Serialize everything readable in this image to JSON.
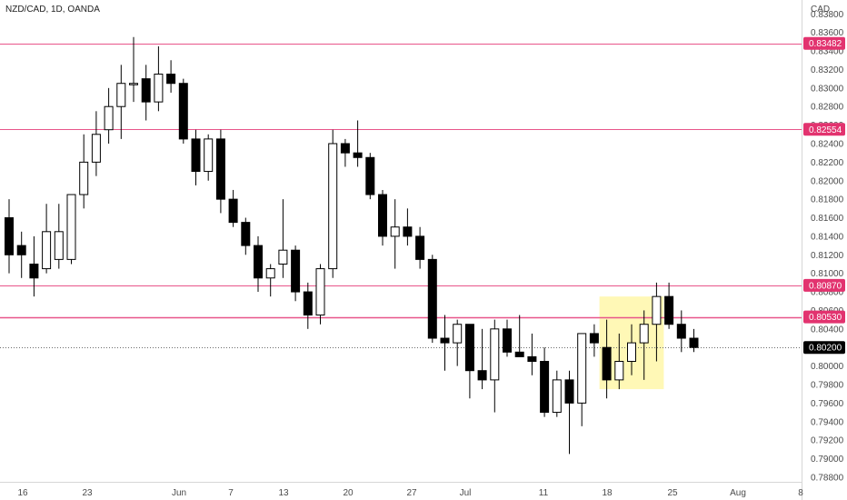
{
  "chart_data": {
    "type": "candlestick",
    "title": "NZD/CAD, 1D, OANDA",
    "currency_label": "CAD",
    "ylim": [
      0.7875,
      0.8395
    ],
    "y_ticks": [
      "0.83800",
      "0.83600",
      "0.83400",
      "0.83200",
      "0.83000",
      "0.82800",
      "0.82600",
      "0.82400",
      "0.82200",
      "0.82000",
      "0.81800",
      "0.81600",
      "0.81400",
      "0.81200",
      "0.81000",
      "0.80800",
      "0.80600",
      "0.80400",
      "0.80200",
      "0.80000",
      "0.79800",
      "0.79600",
      "0.79400",
      "0.79200",
      "0.79000",
      "0.78800"
    ],
    "x_labels": [
      "16",
      "23",
      "Jun",
      "7",
      "13",
      "20",
      "27",
      "Jul",
      "11",
      "18",
      "25",
      "Aug",
      "8"
    ],
    "horizontal_levels": [
      {
        "value": 0.83482,
        "label": "0.83482"
      },
      {
        "value": 0.82554,
        "label": "0.82554"
      },
      {
        "value": 0.8087,
        "label": "0.80870"
      },
      {
        "value": 0.8053,
        "label": "0.80530"
      }
    ],
    "last_price": {
      "value": 0.802,
      "label": "0.80200"
    },
    "highlight": {
      "from": 0.7975,
      "to": 0.8075,
      "start_candle": 48,
      "end_candle": 52
    },
    "candles": [
      {
        "o": 0.816,
        "h": 0.818,
        "l": 0.81,
        "c": 0.812
      },
      {
        "o": 0.813,
        "h": 0.8145,
        "l": 0.8095,
        "c": 0.812
      },
      {
        "o": 0.811,
        "h": 0.814,
        "l": 0.8075,
        "c": 0.8095
      },
      {
        "o": 0.8105,
        "h": 0.8175,
        "l": 0.81,
        "c": 0.8145
      },
      {
        "o": 0.8115,
        "h": 0.8175,
        "l": 0.8105,
        "c": 0.8145
      },
      {
        "o": 0.8115,
        "h": 0.8185,
        "l": 0.811,
        "c": 0.8185
      },
      {
        "o": 0.8185,
        "h": 0.825,
        "l": 0.817,
        "c": 0.822
      },
      {
        "o": 0.822,
        "h": 0.8275,
        "l": 0.8205,
        "c": 0.825
      },
      {
        "o": 0.8255,
        "h": 0.83,
        "l": 0.824,
        "c": 0.828
      },
      {
        "o": 0.828,
        "h": 0.8325,
        "l": 0.8245,
        "c": 0.8305
      },
      {
        "o": 0.8305,
        "h": 0.8355,
        "l": 0.8285,
        "c": 0.8305
      },
      {
        "o": 0.831,
        "h": 0.8325,
        "l": 0.8265,
        "c": 0.8285
      },
      {
        "o": 0.8285,
        "h": 0.8345,
        "l": 0.8275,
        "c": 0.8315
      },
      {
        "o": 0.8315,
        "h": 0.833,
        "l": 0.8295,
        "c": 0.8305
      },
      {
        "o": 0.8305,
        "h": 0.831,
        "l": 0.824,
        "c": 0.8245
      },
      {
        "o": 0.8245,
        "h": 0.8255,
        "l": 0.8195,
        "c": 0.821
      },
      {
        "o": 0.821,
        "h": 0.825,
        "l": 0.82,
        "c": 0.8245
      },
      {
        "o": 0.8245,
        "h": 0.8255,
        "l": 0.8165,
        "c": 0.818
      },
      {
        "o": 0.818,
        "h": 0.819,
        "l": 0.815,
        "c": 0.8155
      },
      {
        "o": 0.8155,
        "h": 0.816,
        "l": 0.812,
        "c": 0.813
      },
      {
        "o": 0.813,
        "h": 0.814,
        "l": 0.808,
        "c": 0.8095
      },
      {
        "o": 0.8095,
        "h": 0.811,
        "l": 0.8075,
        "c": 0.8105
      },
      {
        "o": 0.811,
        "h": 0.818,
        "l": 0.8095,
        "c": 0.8125
      },
      {
        "o": 0.8125,
        "h": 0.813,
        "l": 0.807,
        "c": 0.808
      },
      {
        "o": 0.808,
        "h": 0.809,
        "l": 0.804,
        "c": 0.8055
      },
      {
        "o": 0.8055,
        "h": 0.811,
        "l": 0.8045,
        "c": 0.8105
      },
      {
        "o": 0.8105,
        "h": 0.8255,
        "l": 0.8095,
        "c": 0.824
      },
      {
        "o": 0.824,
        "h": 0.8245,
        "l": 0.8215,
        "c": 0.823
      },
      {
        "o": 0.823,
        "h": 0.8265,
        "l": 0.8215,
        "c": 0.8225
      },
      {
        "o": 0.8225,
        "h": 0.823,
        "l": 0.818,
        "c": 0.8185
      },
      {
        "o": 0.8185,
        "h": 0.819,
        "l": 0.813,
        "c": 0.814
      },
      {
        "o": 0.814,
        "h": 0.818,
        "l": 0.8105,
        "c": 0.815
      },
      {
        "o": 0.815,
        "h": 0.817,
        "l": 0.813,
        "c": 0.814
      },
      {
        "o": 0.814,
        "h": 0.815,
        "l": 0.8105,
        "c": 0.8115
      },
      {
        "o": 0.8115,
        "h": 0.812,
        "l": 0.8025,
        "c": 0.803
      },
      {
        "o": 0.803,
        "h": 0.8055,
        "l": 0.7995,
        "c": 0.8025
      },
      {
        "o": 0.8025,
        "h": 0.805,
        "l": 0.8,
        "c": 0.8045
      },
      {
        "o": 0.8045,
        "h": 0.8045,
        "l": 0.7965,
        "c": 0.7995
      },
      {
        "o": 0.7995,
        "h": 0.804,
        "l": 0.7975,
        "c": 0.7985
      },
      {
        "o": 0.7985,
        "h": 0.805,
        "l": 0.795,
        "c": 0.804
      },
      {
        "o": 0.804,
        "h": 0.805,
        "l": 0.801,
        "c": 0.8015
      },
      {
        "o": 0.8015,
        "h": 0.8055,
        "l": 0.801,
        "c": 0.801
      },
      {
        "o": 0.801,
        "h": 0.8035,
        "l": 0.799,
        "c": 0.8005
      },
      {
        "o": 0.8005,
        "h": 0.802,
        "l": 0.7945,
        "c": 0.795
      },
      {
        "o": 0.795,
        "h": 0.7995,
        "l": 0.7945,
        "c": 0.7985
      },
      {
        "o": 0.7985,
        "h": 0.7995,
        "l": 0.7905,
        "c": 0.796
      },
      {
        "o": 0.796,
        "h": 0.8035,
        "l": 0.7935,
        "c": 0.8035
      },
      {
        "o": 0.8035,
        "h": 0.8045,
        "l": 0.801,
        "c": 0.8025
      },
      {
        "o": 0.802,
        "h": 0.805,
        "l": 0.7965,
        "c": 0.7985
      },
      {
        "o": 0.7985,
        "h": 0.8035,
        "l": 0.7975,
        "c": 0.8005
      },
      {
        "o": 0.8005,
        "h": 0.8045,
        "l": 0.799,
        "c": 0.8025
      },
      {
        "o": 0.8025,
        "h": 0.806,
        "l": 0.7985,
        "c": 0.8045
      },
      {
        "o": 0.8045,
        "h": 0.809,
        "l": 0.8005,
        "c": 0.8075
      },
      {
        "o": 0.8075,
        "h": 0.809,
        "l": 0.804,
        "c": 0.8045
      },
      {
        "o": 0.8045,
        "h": 0.806,
        "l": 0.8015,
        "c": 0.803
      },
      {
        "o": 0.803,
        "h": 0.804,
        "l": 0.8015,
        "c": 0.802
      }
    ]
  }
}
